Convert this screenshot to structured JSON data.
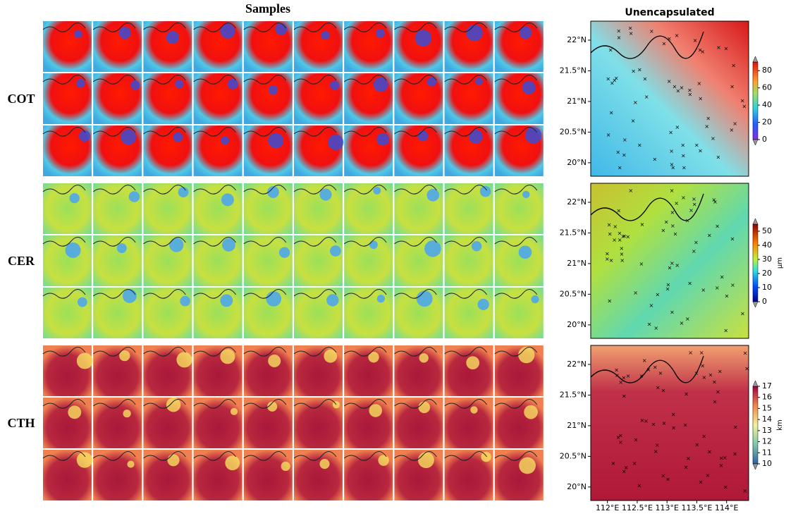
{
  "samples_title": "Samples",
  "map_title": "Unencapsulated",
  "rows": [
    {
      "label": "COT",
      "colorbar": {
        "lim": [
          0,
          90
        ],
        "ticks": [
          0,
          20,
          40,
          60,
          80
        ]
      }
    },
    {
      "label": "CER",
      "colorbar": {
        "lim": [
          0,
          55
        ],
        "ticks": [
          0,
          10,
          20,
          30,
          40,
          50
        ],
        "unit": "µm"
      }
    },
    {
      "label": "CTH",
      "colorbar": {
        "lim": [
          10,
          17
        ],
        "ticks": [
          10,
          11,
          12,
          13,
          14,
          15,
          16,
          17
        ],
        "unit": "km"
      }
    }
  ],
  "latitude": {
    "lim": [
      19.78,
      22.31
    ],
    "ticks": [
      {
        "value": 20,
        "label": "20°N"
      },
      {
        "value": 20.5,
        "label": "20.5°N"
      },
      {
        "value": 21,
        "label": "21°N"
      },
      {
        "value": 21.5,
        "label": "21.5°N"
      },
      {
        "value": 22,
        "label": "22°N"
      }
    ]
  },
  "longitude": {
    "lim": [
      111.72,
      114.37
    ],
    "ticks": [
      {
        "value": 112,
        "label": "112°E"
      },
      {
        "value": 112.5,
        "label": "112.5°E"
      },
      {
        "value": 113,
        "label": "113°E"
      },
      {
        "value": 113.5,
        "label": "113.5°E"
      },
      {
        "value": 114,
        "label": "114°E"
      }
    ]
  }
}
